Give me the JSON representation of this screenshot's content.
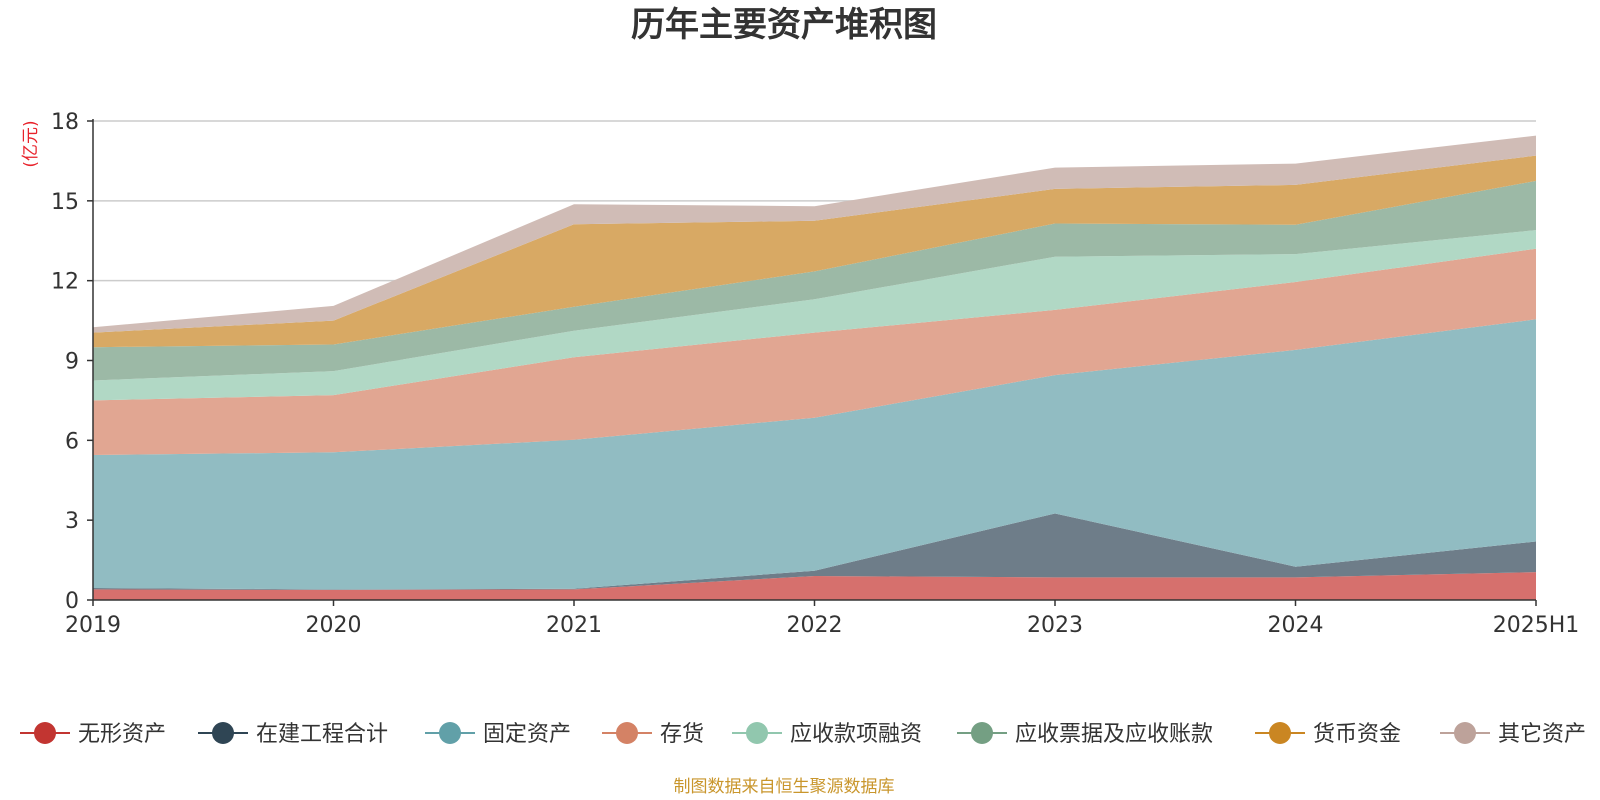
{
  "chart_data": {
    "type": "area",
    "title": "历年主要资产堆积图",
    "unit_label": "(亿元)",
    "source": "制图数据来自恒生聚源数据库",
    "categories": [
      "2019",
      "2020",
      "2021",
      "2022",
      "2023",
      "2024",
      "2025H1"
    ],
    "ylim": [
      0,
      18
    ],
    "yticks": [
      0,
      3,
      6,
      9,
      12,
      15,
      18
    ],
    "grid": true,
    "stacked": true,
    "legend_position": "bottom",
    "series": [
      {
        "name": "无形资产",
        "color": "#c23531",
        "fill": "#d6706d",
        "values": [
          0.4,
          0.38,
          0.4,
          0.9,
          0.85,
          0.85,
          1.05
        ]
      },
      {
        "name": "在建工程合计",
        "color": "#2f4554",
        "fill": "#6e7d89",
        "values": [
          0.05,
          0.02,
          0.02,
          0.2,
          2.4,
          0.4,
          1.15
        ]
      },
      {
        "name": "固定资产",
        "color": "#61a0a8",
        "fill": "#91bcc2",
        "values": [
          5.0,
          5.15,
          5.6,
          5.75,
          5.2,
          8.15,
          8.35
        ]
      },
      {
        "name": "存货",
        "color": "#d48265",
        "fill": "#e1a692",
        "values": [
          2.05,
          2.15,
          3.1,
          3.2,
          2.45,
          2.55,
          2.65
        ]
      },
      {
        "name": "应收款项融资",
        "color": "#91c7ae",
        "fill": "#b1d8c5",
        "values": [
          0.75,
          0.9,
          1.0,
          1.25,
          2.0,
          1.05,
          0.7
        ]
      },
      {
        "name": "应收票据及应收账款",
        "color": "#749f83",
        "fill": "#9cb9a6",
        "values": [
          1.25,
          1.0,
          0.9,
          1.05,
          1.25,
          1.1,
          1.85
        ]
      },
      {
        "name": "货币资金",
        "color": "#ca8622",
        "fill": "#d8a964",
        "values": [
          0.55,
          0.9,
          3.1,
          1.9,
          1.3,
          1.5,
          0.95
        ]
      },
      {
        "name": "其它资产",
        "color": "#bda29a",
        "fill": "#d0bcb6",
        "values": [
          0.2,
          0.55,
          0.75,
          0.55,
          0.8,
          0.8,
          0.75
        ]
      }
    ]
  }
}
